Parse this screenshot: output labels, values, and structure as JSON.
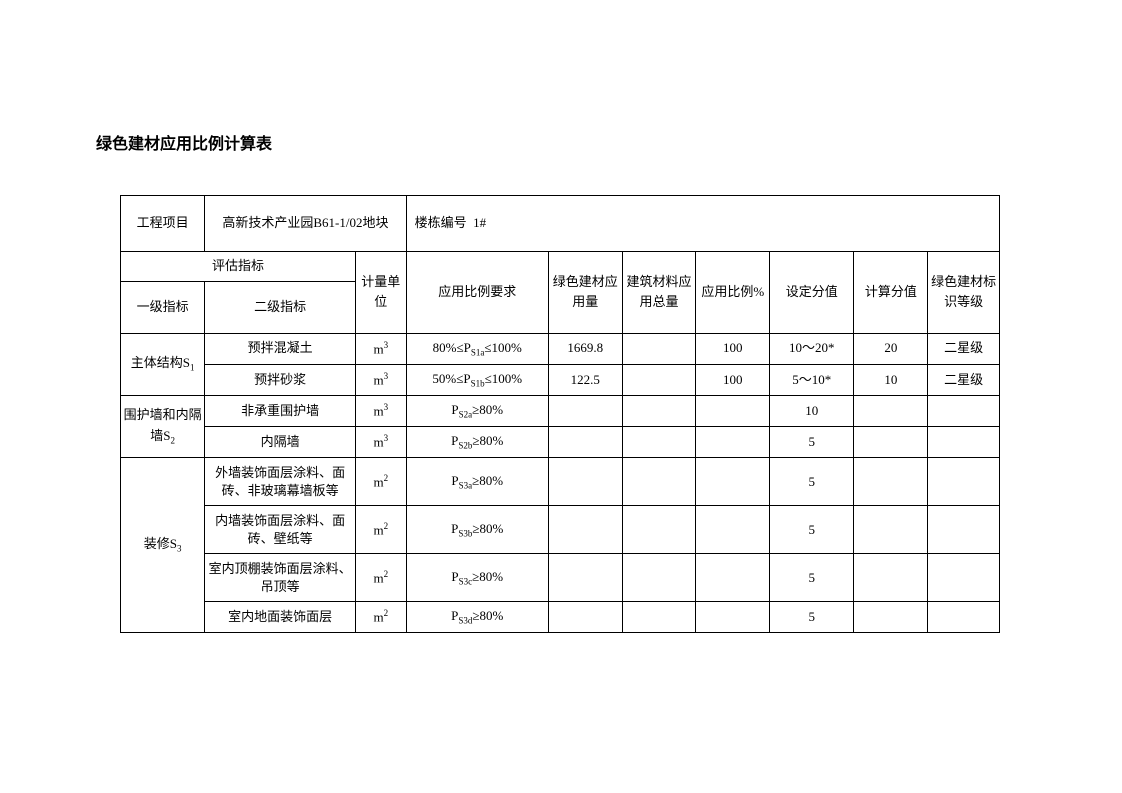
{
  "title": "绿色建材应用比例计算表",
  "header": {
    "project_label": "工程项目",
    "project_value": "高新技术产业园B61-1/02地块",
    "building_label": "楼栋编号",
    "building_value": "1#"
  },
  "columns": {
    "assessment_index": "评估指标",
    "primary_index": "一级指标",
    "secondary_index": "二级指标",
    "unit": "计量单位",
    "ratio_req": "应用比例要求",
    "green_amount": "绿色建材应用量",
    "total_amount": "建筑材料应用总量",
    "ratio_pct": "应用比例%",
    "set_score": "设定分值",
    "calc_score": "计算分值",
    "green_grade": "绿色建材标识等级"
  },
  "rows": [
    {
      "primary": "主体结构S₁",
      "primary_rowspan": 2,
      "secondary": "预拌混凝土",
      "unit": "m³",
      "req": "80%≤P_S1a≤100%",
      "green_amount": "1669.8",
      "total_amount": "",
      "ratio": "100",
      "set_score": "10～20*",
      "calc_score": "20",
      "grade": "二星级"
    },
    {
      "secondary": "预拌砂浆",
      "unit": "m³",
      "req": "50%≤P_S1b≤100%",
      "green_amount": "122.5",
      "total_amount": "",
      "ratio": "100",
      "set_score": "5～10*",
      "calc_score": "10",
      "grade": "二星级"
    },
    {
      "primary": "围护墙和内隔墙S₂",
      "primary_rowspan": 2,
      "secondary": "非承重围护墙",
      "unit": "m³",
      "req": "P_S2a≥80%",
      "green_amount": "",
      "total_amount": "",
      "ratio": "",
      "set_score": "10",
      "calc_score": "",
      "grade": ""
    },
    {
      "secondary": "内隔墙",
      "unit": "m³",
      "req": "P_S2b≥80%",
      "green_amount": "",
      "total_amount": "",
      "ratio": "",
      "set_score": "5",
      "calc_score": "",
      "grade": ""
    },
    {
      "primary": "装修S₃",
      "primary_rowspan": 4,
      "secondary": "外墙装饰面层涂料、面砖、非玻璃幕墙板等",
      "unit": "m²",
      "req": "P_S3a≥80%",
      "green_amount": "",
      "total_amount": "",
      "ratio": "",
      "set_score": "5",
      "calc_score": "",
      "grade": ""
    },
    {
      "secondary": "内墙装饰面层涂料、面砖、壁纸等",
      "unit": "m²",
      "req": "P_S3b≥80%",
      "green_amount": "",
      "total_amount": "",
      "ratio": "",
      "set_score": "5",
      "calc_score": "",
      "grade": ""
    },
    {
      "secondary": "室内顶棚装饰面层涂料、吊顶等",
      "unit": "m²",
      "req": "P_S3c≥80%",
      "green_amount": "",
      "total_amount": "",
      "ratio": "",
      "set_score": "5",
      "calc_score": "",
      "grade": ""
    },
    {
      "secondary": "室内地面装饰面层",
      "unit": "m²",
      "req": "P_S3d≥80%",
      "green_amount": "",
      "total_amount": "",
      "ratio": "",
      "set_score": "5",
      "calc_score": "",
      "grade": ""
    }
  ],
  "table_style": {
    "border_color": "#000000",
    "text_color": "#000000",
    "background": "#ffffff",
    "font_size": 13,
    "title_font_size": 16,
    "title_weight": "bold"
  }
}
